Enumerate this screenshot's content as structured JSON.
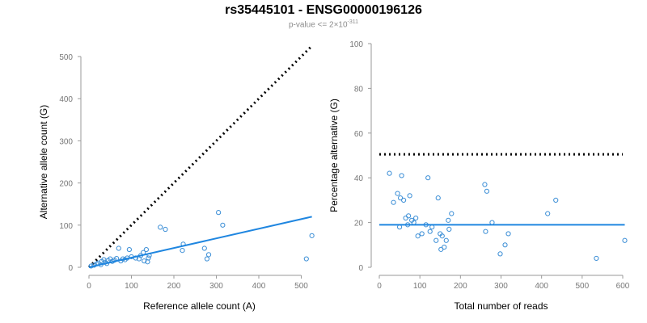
{
  "header": {
    "title": "rs35445101 - ENSG00000196126",
    "subtitle_prefix": "p-value <= 2×10",
    "subtitle_exp": "-311"
  },
  "colors": {
    "points": "#3b8ed6",
    "fit": "#1f86e0",
    "reference": "#000000",
    "axis": "#9a9a9a"
  },
  "chart_data": [
    {
      "type": "scatter",
      "xlabel": "Reference allele count (A)",
      "ylabel": "Alternative allele count (G)",
      "xlim": [
        0,
        520
      ],
      "ylim": [
        0,
        500
      ],
      "xticks": [
        0,
        100,
        200,
        300,
        400,
        500
      ],
      "yticks": [
        0,
        100,
        200,
        300,
        400,
        500
      ],
      "reference_line": {
        "style": "dotted",
        "from": [
          0,
          0
        ],
        "to": [
          525,
          525
        ]
      },
      "fit_line": {
        "from": [
          0,
          0
        ],
        "to": [
          525,
          120
        ]
      },
      "points": [
        [
          5,
          3
        ],
        [
          12,
          5
        ],
        [
          18,
          8
        ],
        [
          22,
          10
        ],
        [
          28,
          6
        ],
        [
          30,
          14
        ],
        [
          35,
          18
        ],
        [
          38,
          12
        ],
        [
          42,
          9
        ],
        [
          45,
          16
        ],
        [
          50,
          20
        ],
        [
          55,
          14
        ],
        [
          60,
          17
        ],
        [
          65,
          21
        ],
        [
          70,
          45
        ],
        [
          75,
          15
        ],
        [
          80,
          20
        ],
        [
          85,
          18
        ],
        [
          90,
          22
        ],
        [
          95,
          42
        ],
        [
          100,
          25
        ],
        [
          110,
          22
        ],
        [
          118,
          20
        ],
        [
          122,
          28
        ],
        [
          128,
          35
        ],
        [
          130,
          15
        ],
        [
          135,
          42
        ],
        [
          138,
          13
        ],
        [
          140,
          22
        ],
        [
          142,
          28
        ],
        [
          168,
          95
        ],
        [
          180,
          90
        ],
        [
          220,
          40
        ],
        [
          222,
          55
        ],
        [
          272,
          45
        ],
        [
          278,
          20
        ],
        [
          282,
          30
        ],
        [
          305,
          130
        ],
        [
          315,
          100
        ],
        [
          512,
          20
        ],
        [
          525,
          75
        ]
      ]
    },
    {
      "type": "scatter",
      "xlabel": "Total number of reads",
      "ylabel": "Percentage alternative (G)",
      "xlim": [
        0,
        600
      ],
      "ylim": [
        0,
        100
      ],
      "xticks": [
        0,
        100,
        200,
        300,
        400,
        500,
        600
      ],
      "yticks": [
        0,
        20,
        40,
        60,
        80,
        100
      ],
      "reference_line": {
        "style": "dotted",
        "from": [
          0,
          50.5
        ],
        "to": [
          600,
          50.5
        ]
      },
      "fit_line": {
        "from": [
          0,
          19
        ],
        "to": [
          605,
          19
        ]
      },
      "points": [
        [
          25,
          42
        ],
        [
          35,
          29
        ],
        [
          45,
          33
        ],
        [
          50,
          18
        ],
        [
          52,
          31
        ],
        [
          55,
          41
        ],
        [
          60,
          30
        ],
        [
          65,
          22
        ],
        [
          70,
          19
        ],
        [
          72,
          23
        ],
        [
          75,
          32
        ],
        [
          80,
          21
        ],
        [
          85,
          20
        ],
        [
          90,
          22
        ],
        [
          95,
          14
        ],
        [
          105,
          15
        ],
        [
          115,
          19
        ],
        [
          120,
          40
        ],
        [
          125,
          16
        ],
        [
          130,
          18
        ],
        [
          140,
          12
        ],
        [
          145,
          31
        ],
        [
          150,
          15
        ],
        [
          152,
          8
        ],
        [
          155,
          14
        ],
        [
          160,
          9
        ],
        [
          165,
          12
        ],
        [
          170,
          21
        ],
        [
          172,
          17
        ],
        [
          178,
          24
        ],
        [
          260,
          37
        ],
        [
          262,
          16
        ],
        [
          265,
          34
        ],
        [
          278,
          20
        ],
        [
          298,
          6
        ],
        [
          310,
          10
        ],
        [
          318,
          15
        ],
        [
          415,
          24
        ],
        [
          435,
          30
        ],
        [
          535,
          4
        ],
        [
          605,
          12
        ]
      ]
    }
  ]
}
